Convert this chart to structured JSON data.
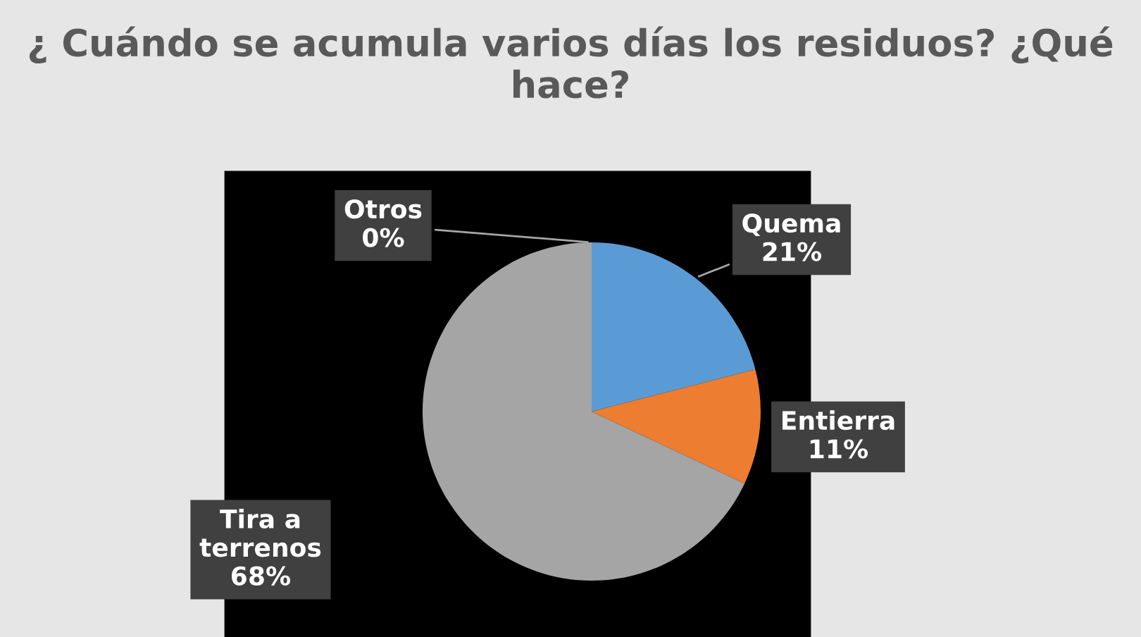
{
  "chart_data": {
    "type": "pie",
    "title": "¿ Cuándo se acumula varios días los residuos? ¿Qué hace?",
    "categories": [
      "Quema",
      "Entierra",
      "Tira a terrenos",
      "Otros"
    ],
    "values": [
      21,
      11,
      68,
      0
    ],
    "colors": [
      "#5b9bd5",
      "#ed7d31",
      "#a5a5a5",
      "#ffc000"
    ],
    "value_labels": [
      "21%",
      "11%",
      "68%",
      "0%"
    ],
    "legend": false
  }
}
